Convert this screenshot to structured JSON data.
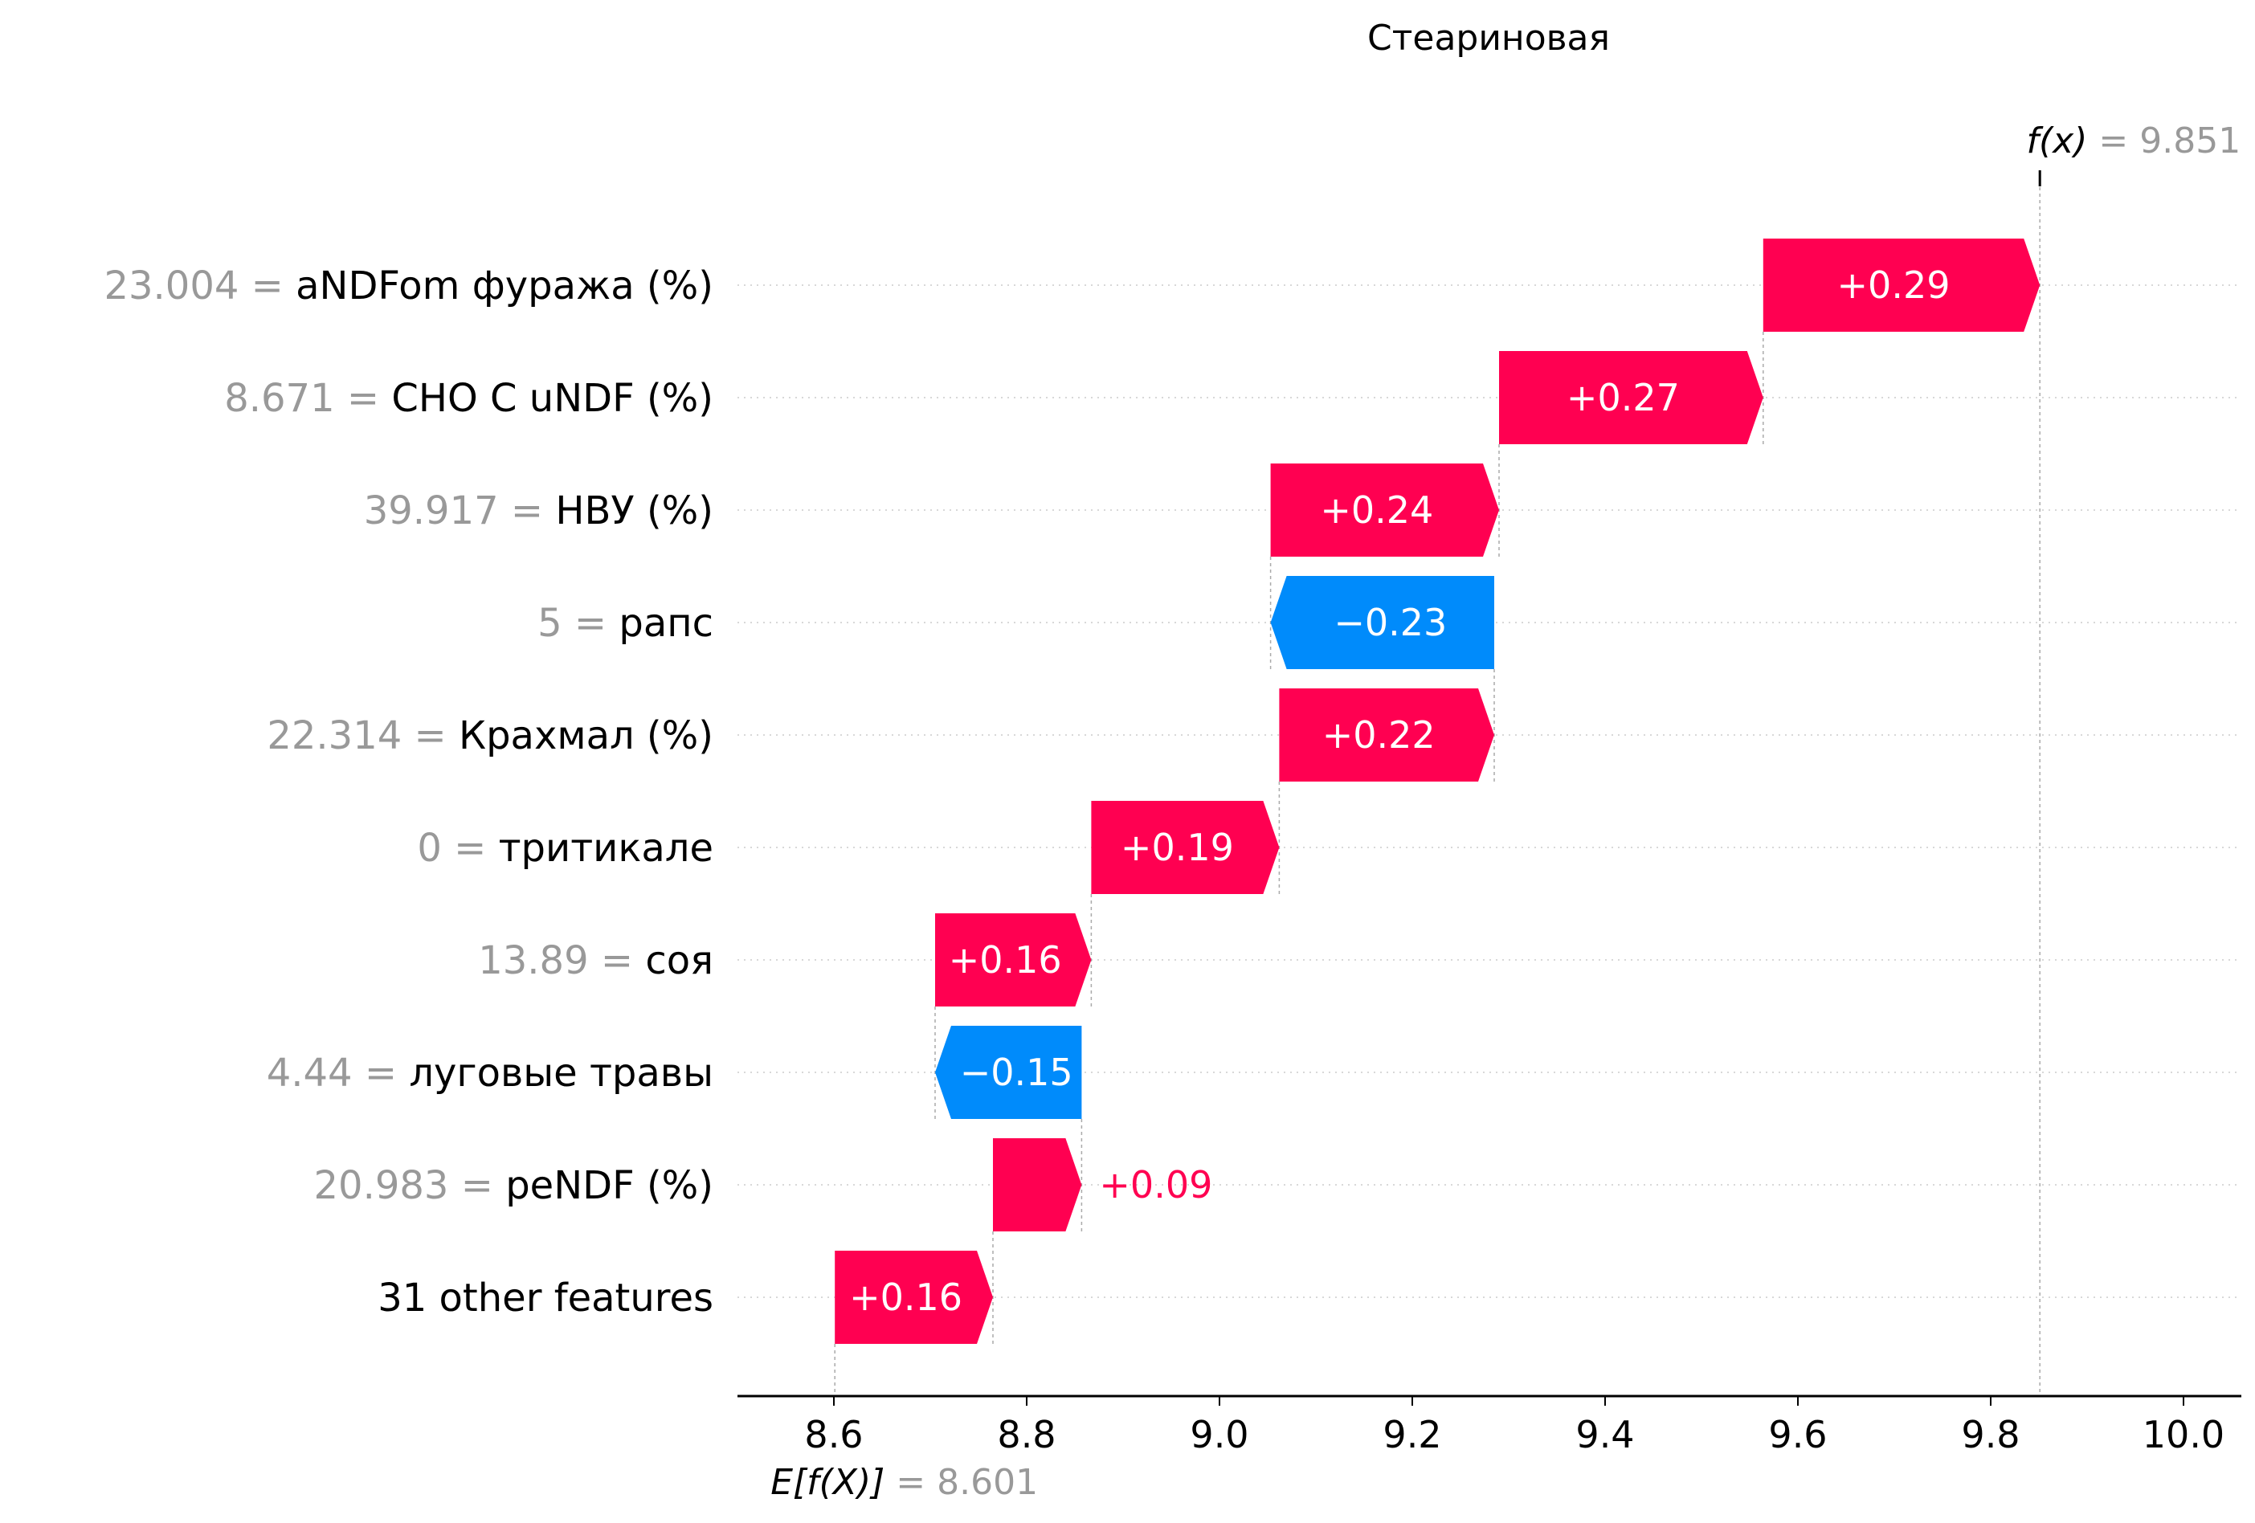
{
  "chart_data": {
    "type": "waterfall",
    "title": "Стеариновая",
    "base": {
      "prefix_italic": "E[f(X)]",
      "eq": " = ",
      "value": 8.601,
      "value_text": "8.601"
    },
    "final": {
      "prefix_italic": "f(x)",
      "eq": " = ",
      "value": 9.851,
      "value_text": "9.851"
    },
    "xlim": [
      8.5,
      10.06
    ],
    "ticks": [
      {
        "value": 8.6,
        "label": "8.6"
      },
      {
        "value": 8.8,
        "label": "8.8"
      },
      {
        "value": 9.0,
        "label": "9.0"
      },
      {
        "value": 9.2,
        "label": "9.2"
      },
      {
        "value": 9.4,
        "label": "9.4"
      },
      {
        "value": 9.6,
        "label": "9.6"
      },
      {
        "value": 9.8,
        "label": "9.8"
      },
      {
        "value": 10.0,
        "label": "10.0"
      }
    ],
    "features": [
      {
        "value_text": "23.004",
        "name": "aNDFom фуража (%)",
        "shap": 0.29,
        "label": "+0.29",
        "start": 9.564,
        "end": 9.851
      },
      {
        "value_text": "8.671",
        "name": "CHO C uNDF (%)",
        "shap": 0.27,
        "label": "+0.27",
        "start": 9.29,
        "end": 9.564
      },
      {
        "value_text": "39.917",
        "name": "НВУ (%)",
        "shap": 0.24,
        "label": "+0.24",
        "start": 9.053,
        "end": 9.29
      },
      {
        "value_text": "5",
        "name": "рапс",
        "shap": -0.23,
        "label": "−0.23",
        "start": 9.285,
        "end": 9.053
      },
      {
        "value_text": "22.314",
        "name": "Крахмал (%)",
        "shap": 0.22,
        "label": "+0.22",
        "start": 9.062,
        "end": 9.285
      },
      {
        "value_text": "0",
        "name": "тритикале",
        "shap": 0.19,
        "label": "+0.19",
        "start": 8.867,
        "end": 9.062
      },
      {
        "value_text": "13.89",
        "name": "соя",
        "shap": 0.16,
        "label": "+0.16",
        "start": 8.705,
        "end": 8.867
      },
      {
        "value_text": "4.44",
        "name": "луговые травы",
        "shap": -0.15,
        "label": "−0.15",
        "start": 8.857,
        "end": 8.705
      },
      {
        "value_text": "20.983",
        "name": "peNDF (%)",
        "shap": 0.09,
        "label": "+0.09",
        "start": 8.765,
        "end": 8.857
      },
      {
        "value_text": "",
        "name": "31 other features",
        "shap": 0.16,
        "label": "+0.16",
        "start": 8.601,
        "end": 8.765
      }
    ],
    "colors": {
      "positive": "#ff0051",
      "negative": "#008bfb",
      "value_gray": "#999999",
      "text": "#000000"
    }
  }
}
